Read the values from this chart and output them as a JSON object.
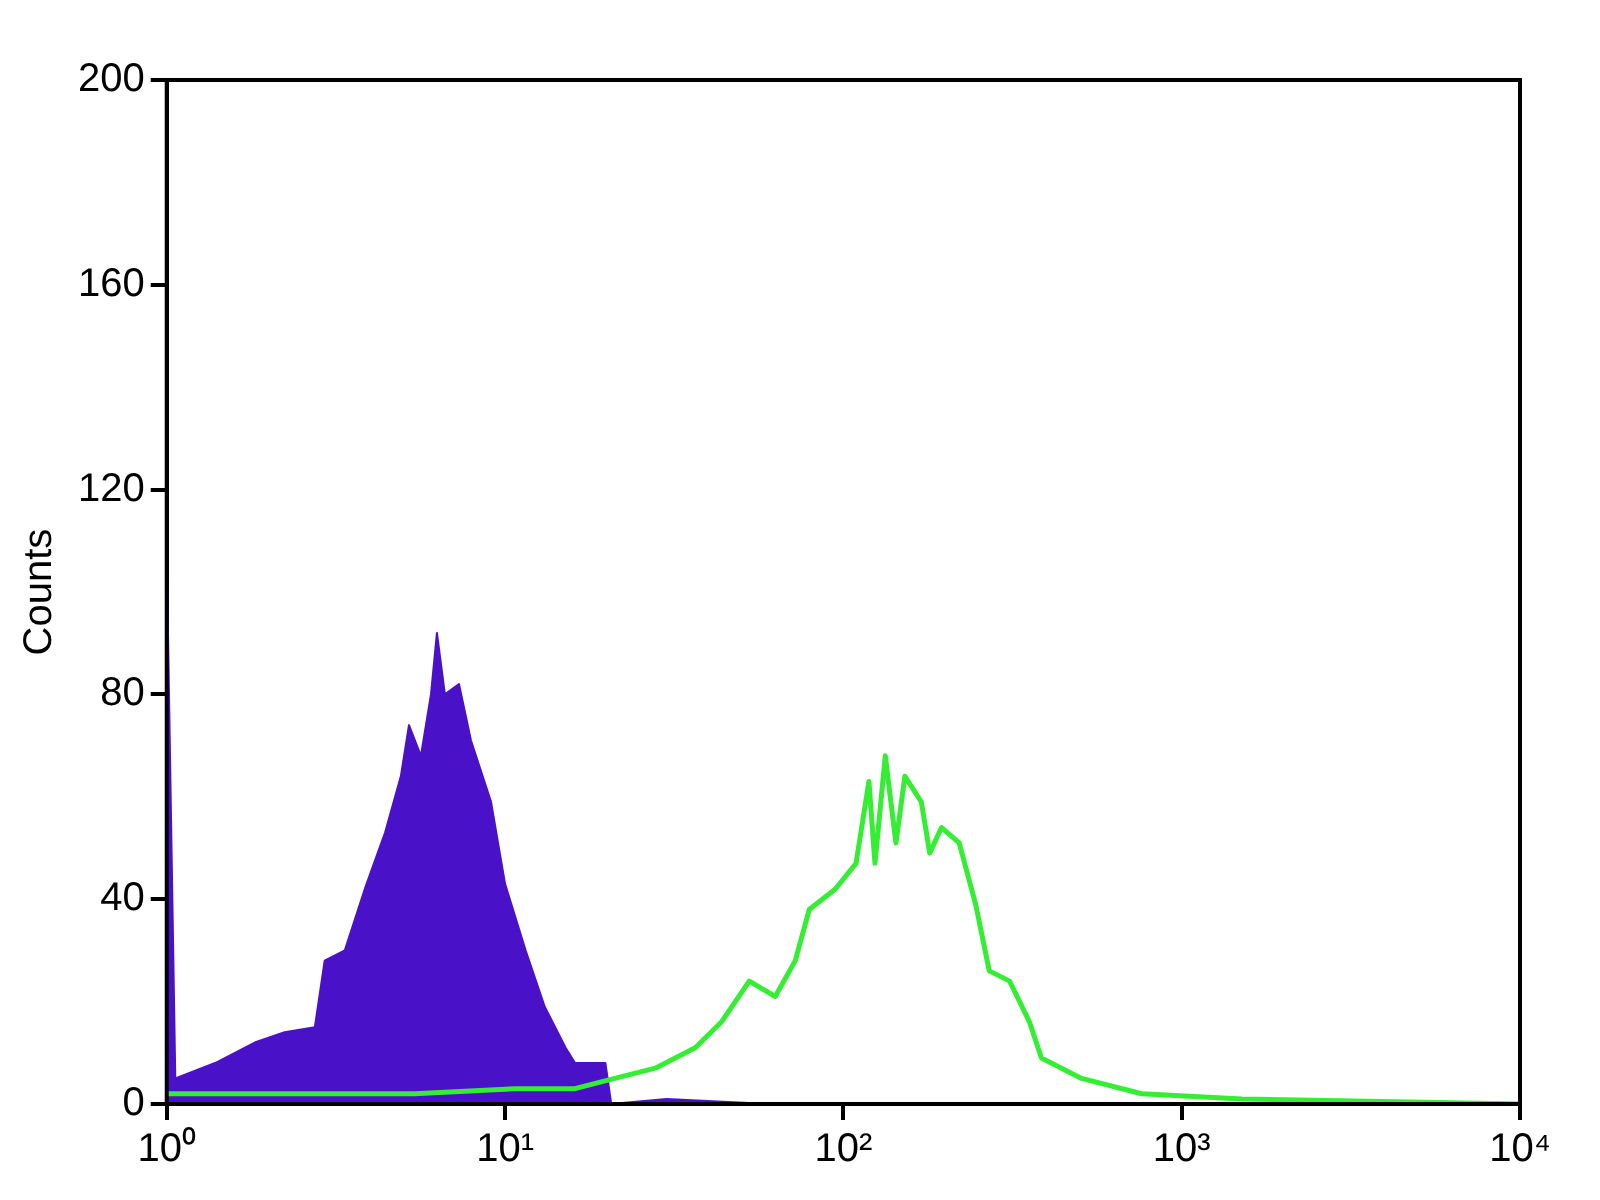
{
  "chart_data": {
    "type": "area",
    "ylabel": "Counts",
    "log": "x",
    "xlim": [
      1,
      10000
    ],
    "xticks": [
      {
        "value": 1,
        "label": "10⁰"
      },
      {
        "value": 10,
        "label": "10¹"
      },
      {
        "value": 100,
        "label": "10²"
      },
      {
        "value": 1000,
        "label": "10³"
      },
      {
        "value": 10000,
        "label": "10⁴"
      }
    ],
    "ylim": [
      0,
      200
    ],
    "yticks": [
      0,
      40,
      80,
      120,
      160,
      200
    ],
    "series": [
      {
        "type": "area",
        "color": "#4a12c8",
        "x": [
          1,
          1.06,
          1.39,
          1.82,
          2.23,
          2.74,
          2.93,
          3.36,
          3.85,
          4.42,
          4.92,
          5.2,
          5.64,
          6.04,
          6.29,
          6.64,
          7.31,
          7.93,
          9.09,
          10,
          11.5,
          13.1,
          15.1,
          16.1,
          19.8,
          20.6,
          30,
          60
        ],
        "values": [
          107,
          5,
          8,
          12,
          14,
          15,
          28,
          30,
          42,
          53,
          64,
          74,
          68,
          80,
          92,
          80,
          82,
          71,
          59,
          43,
          30,
          19,
          11,
          8,
          8,
          0,
          1,
          0
        ]
      },
      {
        "type": "line",
        "color": "#33ee33",
        "x": [
          1,
          2.74,
          5.4,
          10.7,
          16.1,
          21.1,
          27.8,
          36.5,
          43.6,
          52.7,
          62.9,
          72.1,
          79.3,
          94.7,
          109,
          119,
          124,
          133,
          143,
          152,
          170,
          180,
          195,
          220,
          246,
          270,
          310,
          355,
          385,
          506,
          762,
          1506,
          10000
        ],
        "values": [
          2,
          2,
          2,
          3,
          3,
          5,
          7,
          11,
          16,
          24,
          21,
          28,
          38,
          42,
          47,
          63,
          47,
          68,
          51,
          64,
          59,
          49,
          54,
          51,
          39,
          26,
          24,
          16,
          9,
          5,
          2,
          1,
          0
        ]
      }
    ]
  }
}
